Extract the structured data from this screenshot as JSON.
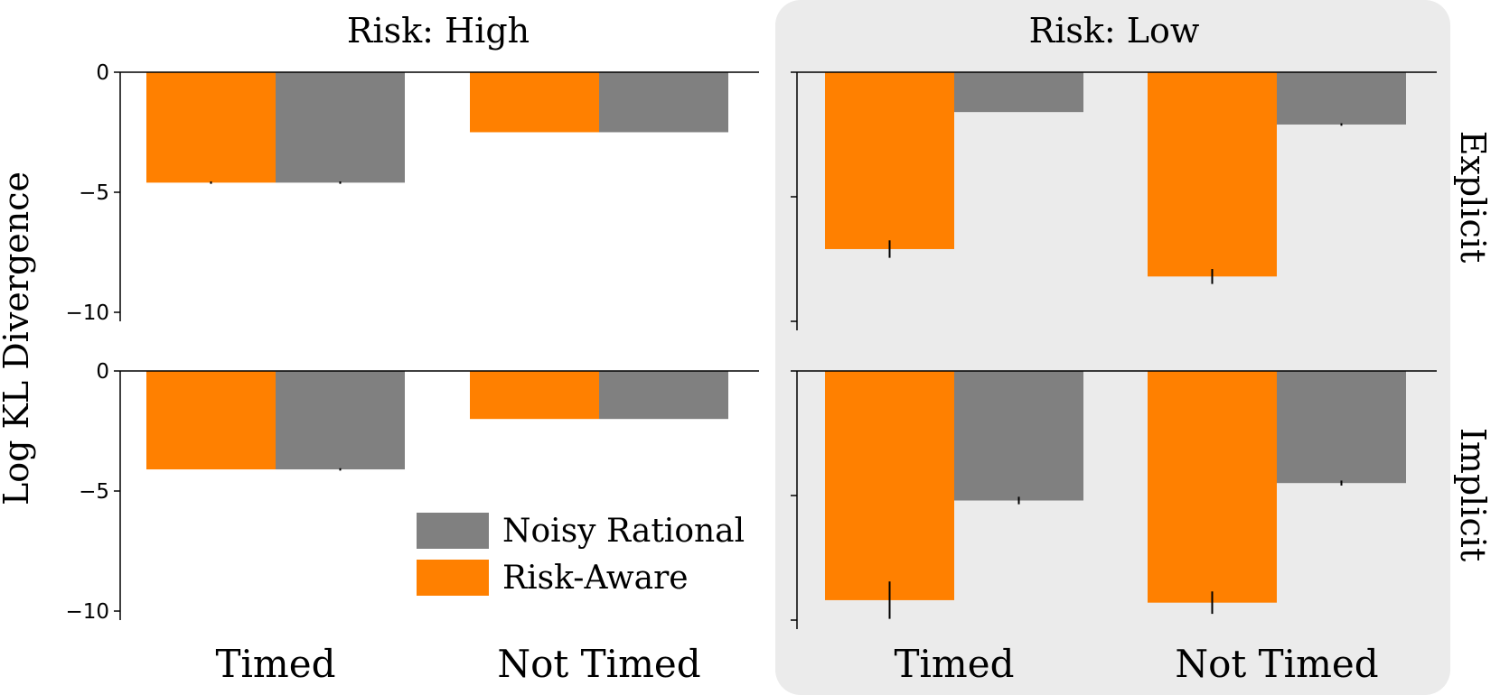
{
  "chart_data": {
    "type": "bar",
    "ylabel": "Log KL Divergence",
    "columns": [
      "Risk: High",
      "Risk: Low"
    ],
    "rows": [
      "Explicit",
      "Implicit"
    ],
    "categories": [
      "Timed",
      "Not Timed"
    ],
    "yticks": [
      "0",
      "−5",
      "−10"
    ],
    "ylim": [
      -10,
      0
    ],
    "legend": {
      "position": "lower-right of bottom-left panel",
      "entries": [
        {
          "name": "Noisy Rational",
          "color": "#808080"
        },
        {
          "name": "Risk-Aware",
          "color": "#ff8000"
        }
      ]
    },
    "colors": {
      "risk_aware": "#ff8000",
      "noisy_rational": "#808080",
      "highlight_panel": "#ebebeb"
    },
    "panels": [
      {
        "column": "Risk: High",
        "row": "Explicit",
        "series": [
          {
            "name": "Risk-Aware",
            "values": [
              -4.6,
              -2.5
            ],
            "error": [
              0.05,
              0.0
            ]
          },
          {
            "name": "Noisy Rational",
            "values": [
              -4.6,
              -2.5
            ],
            "error": [
              0.05,
              0.0
            ]
          }
        ]
      },
      {
        "column": "Risk: Low",
        "row": "Explicit",
        "series": [
          {
            "name": "Risk-Aware",
            "values": [
              -7.1,
              -8.2
            ],
            "error": [
              0.35,
              0.3
            ]
          },
          {
            "name": "Noisy Rational",
            "values": [
              -1.6,
              -2.1
            ],
            "error": [
              0.0,
              0.05
            ]
          }
        ]
      },
      {
        "column": "Risk: High",
        "row": "Implicit",
        "series": [
          {
            "name": "Risk-Aware",
            "values": [
              -4.1,
              -2.0
            ],
            "error": [
              0.0,
              0.0
            ]
          },
          {
            "name": "Noisy Rational",
            "values": [
              -4.1,
              -2.0
            ],
            "error": [
              0.05,
              0.0
            ]
          }
        ]
      },
      {
        "column": "Risk: Low",
        "row": "Implicit",
        "series": [
          {
            "name": "Risk-Aware",
            "values": [
              -9.2,
              -9.3
            ],
            "error": [
              0.75,
              0.45
            ]
          },
          {
            "name": "Noisy Rational",
            "values": [
              -5.2,
              -4.5
            ],
            "error": [
              0.15,
              0.1
            ]
          }
        ]
      }
    ]
  }
}
